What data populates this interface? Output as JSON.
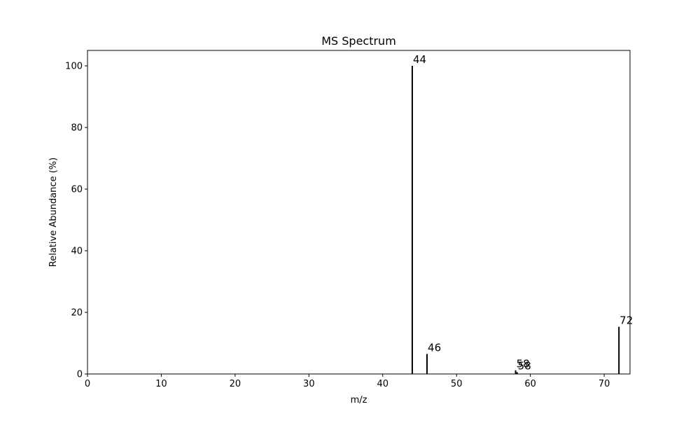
{
  "chart_data": {
    "type": "bar",
    "title": "MS Spectrum",
    "xlabel": "m/z",
    "ylabel": "Relative Abundance (%)",
    "xlim": [
      0,
      73.5
    ],
    "ylim": [
      0,
      105
    ],
    "xticks": [
      0,
      10,
      20,
      30,
      40,
      50,
      60,
      70
    ],
    "yticks": [
      0,
      20,
      40,
      60,
      80,
      100
    ],
    "grid": false,
    "bar_color": "#000000",
    "peaks": [
      {
        "mz": 44,
        "intensity": 100,
        "label": "44"
      },
      {
        "mz": 46,
        "intensity": 6.5,
        "label": "46"
      },
      {
        "mz": 58,
        "intensity": 1.2,
        "label": "58"
      },
      {
        "mz": 58.2,
        "intensity": 0.6,
        "label": "58"
      },
      {
        "mz": 72,
        "intensity": 15.3,
        "label": "72"
      }
    ]
  }
}
